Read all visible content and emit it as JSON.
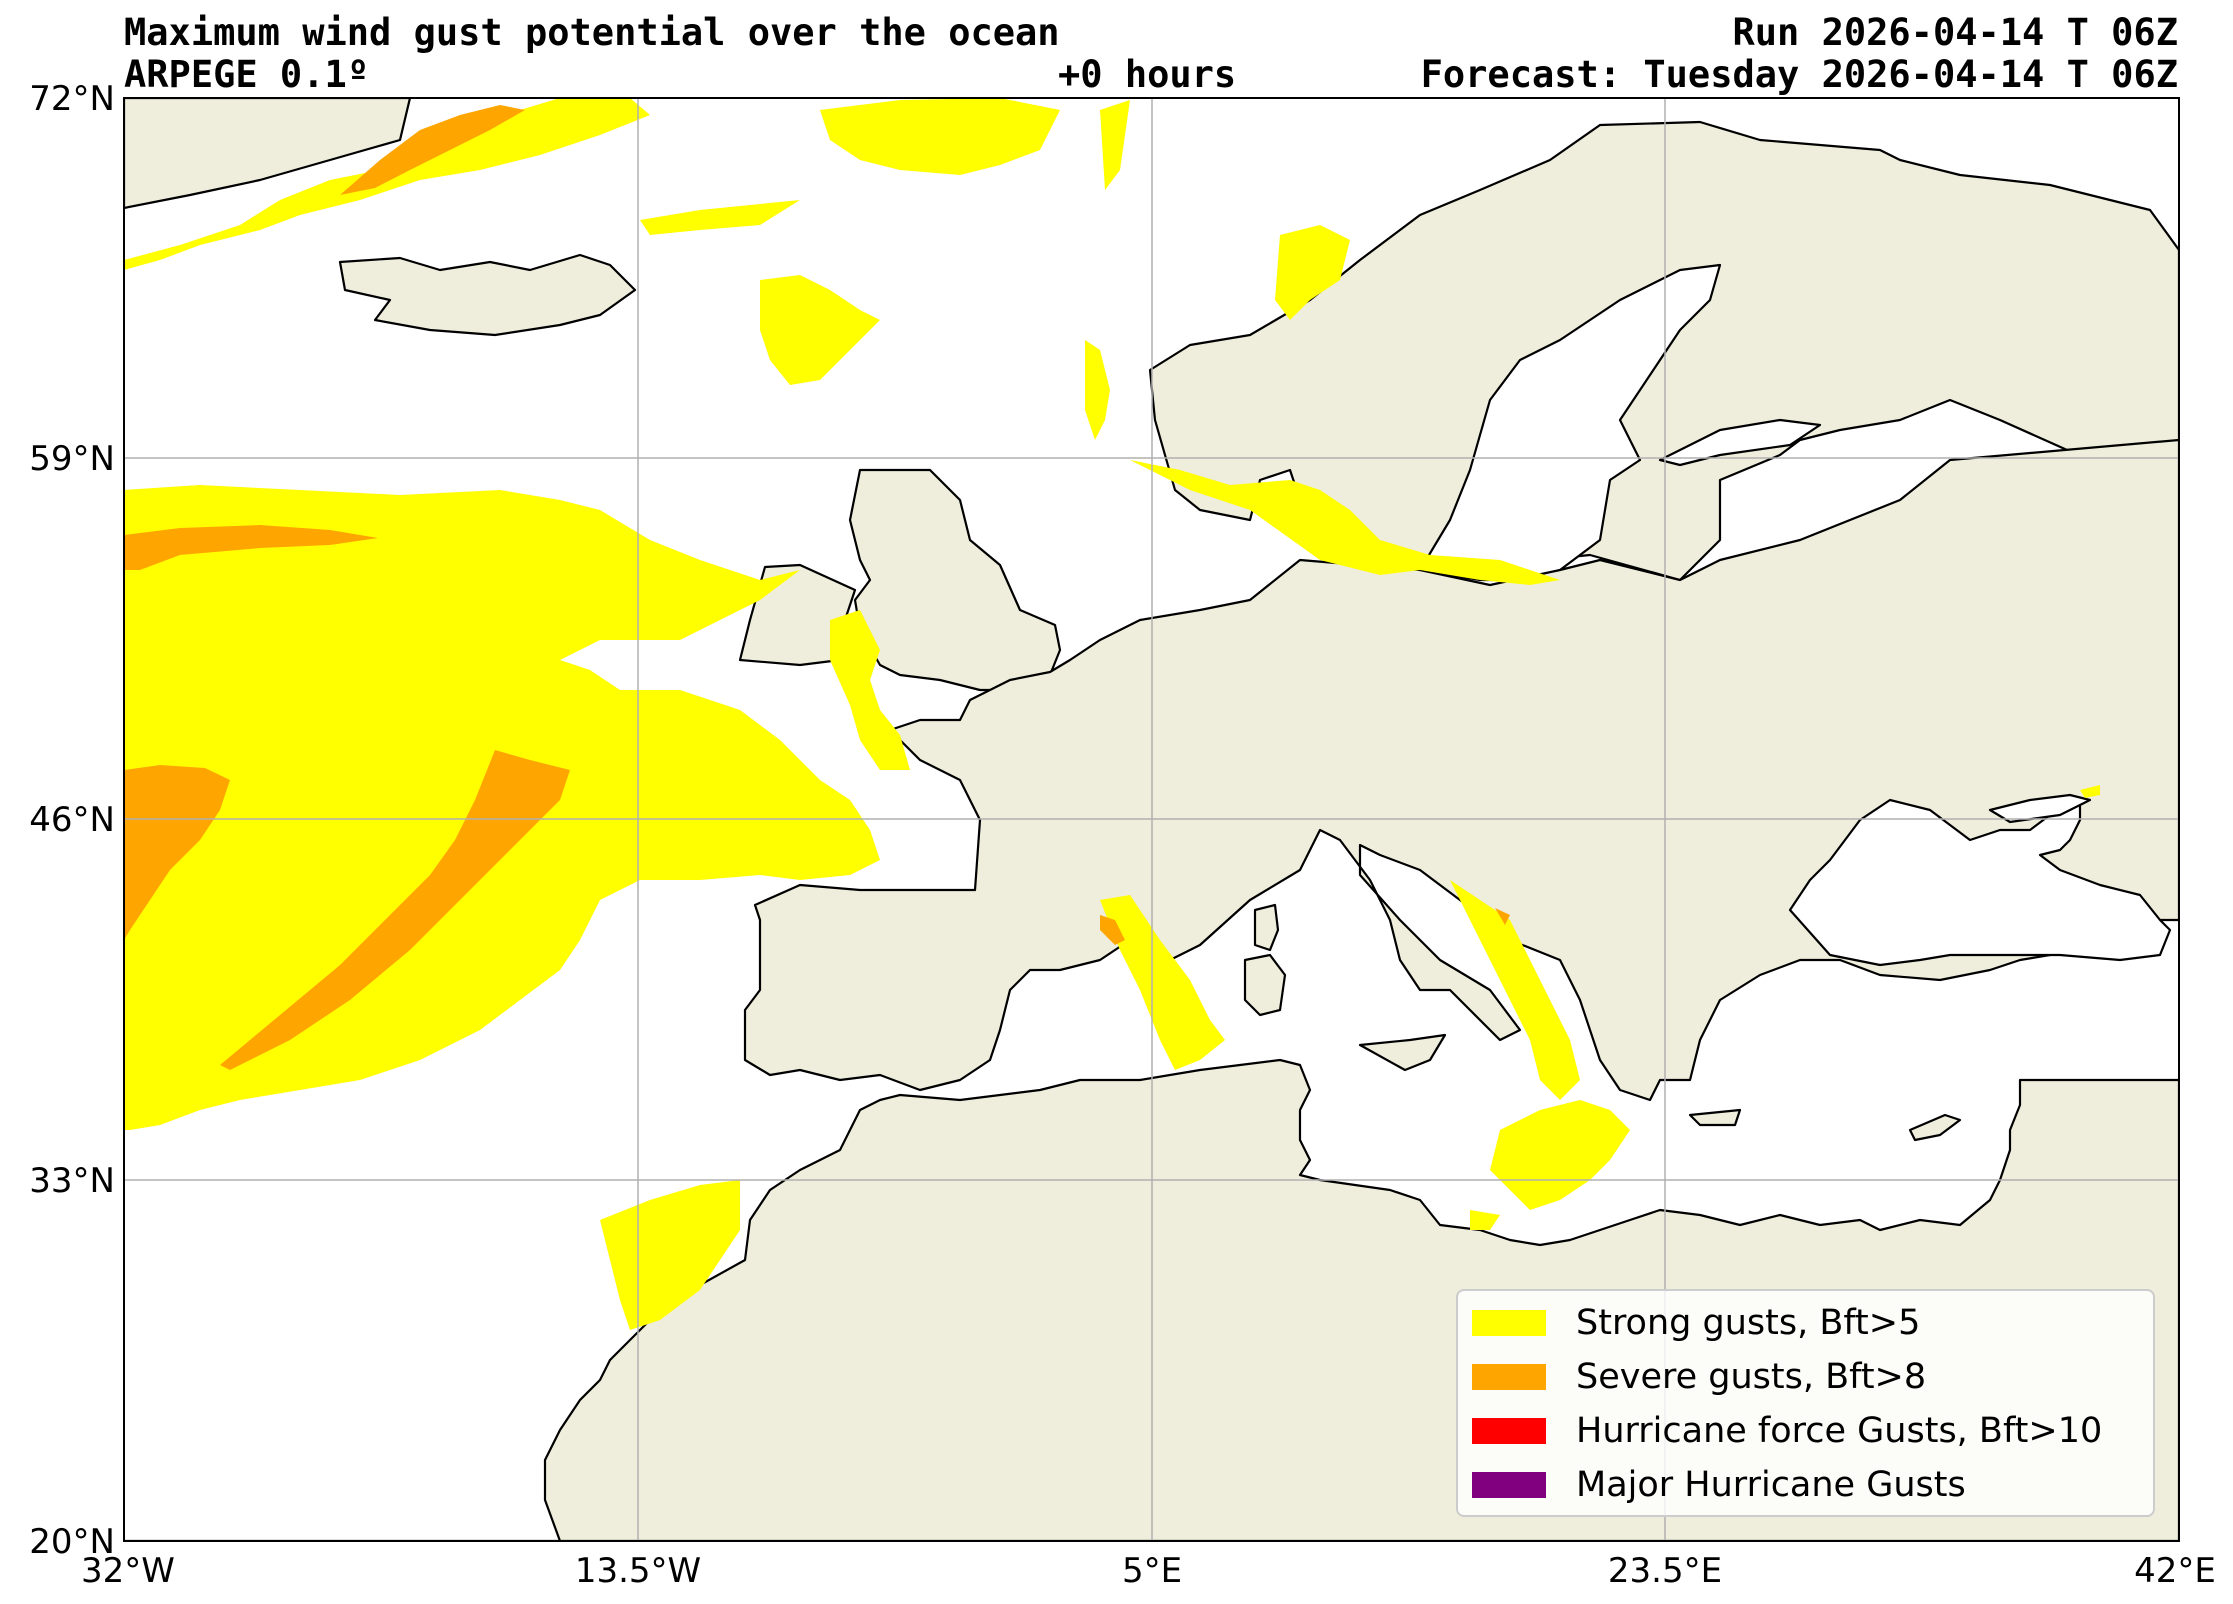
{
  "header": {
    "title": "Maximum wind gust potential over the ocean",
    "model": "ARPEGE 0.1º",
    "lead_time": "+0 hours",
    "run": "Run 2026-04-14 T 06Z",
    "forecast": "Forecast: Tuesday 2026-04-14 T 06Z"
  },
  "axes": {
    "x_ticks": [
      "32°W",
      "13.5°W",
      "5°E",
      "23.5°E",
      "42°E"
    ],
    "y_ticks": [
      "72°N",
      "59°N",
      "46°N",
      "33°N",
      "20°N"
    ],
    "lon_range": [
      -32,
      42
    ],
    "lat_range": [
      20,
      72
    ],
    "grid": true
  },
  "colors": {
    "land": "#efeddc",
    "strong": "#ffff00",
    "severe": "#ffa500",
    "hurricane": "#ff0000",
    "major": "#800080"
  },
  "legend": {
    "items": [
      {
        "label": "Strong gusts, Bft>5",
        "color": "#ffff00"
      },
      {
        "label": "Severe gusts, Bft>8",
        "color": "#ffa500"
      },
      {
        "label": "Hurricane force Gusts, Bft>10",
        "color": "#ff0000"
      },
      {
        "label": "Major Hurricane Gusts",
        "color": "#800080"
      }
    ]
  }
}
